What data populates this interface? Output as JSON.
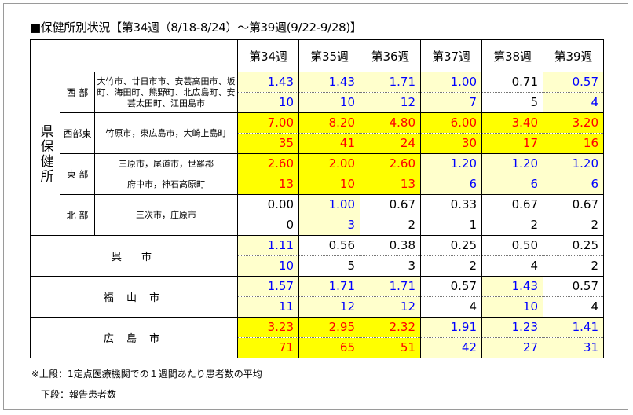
{
  "title": "■保健所別状況【第34週（8/18-8/24）～第39週(9/22-9/28)】",
  "weeks": [
    "第34週",
    "第35週",
    "第36週",
    "第37週",
    "第38週",
    "第39週"
  ],
  "group_label": "県保健所",
  "rows": [
    {
      "sub": "西 部",
      "area": "大竹市、廿日市市、安芸高田市、坂町、海田町、熊野町、北広島町、安芸太田町、江田島市",
      "avg": [
        "1.43",
        "1.43",
        "1.71",
        "1.00",
        "0.71",
        "0.57"
      ],
      "cnt": [
        "10",
        "10",
        "12",
        "7",
        "5",
        "4"
      ]
    },
    {
      "sub": "西部東",
      "area": "竹原市，東広島市，大崎上島町",
      "avg": [
        "7.00",
        "8.20",
        "4.80",
        "6.00",
        "3.40",
        "3.20"
      ],
      "cnt": [
        "35",
        "41",
        "24",
        "30",
        "17",
        "16"
      ]
    },
    {
      "sub": "東 部",
      "area": "三原市，尾道市，世羅郡",
      "avg": [
        "2.60",
        "2.00",
        "2.60",
        "1.20",
        "1.20",
        "1.20"
      ],
      "cnt": [
        "13",
        "10",
        "13",
        "6",
        "6",
        "6"
      ]
    },
    {
      "sub": "",
      "area": "府中市，神石高原町",
      "avg": null,
      "cnt": null
    },
    {
      "sub": "北 部",
      "area": "三次市，庄原市",
      "avg": [
        "0.00",
        "1.00",
        "0.67",
        "0.33",
        "0.67",
        "0.67"
      ],
      "cnt": [
        "0",
        "3",
        "2",
        "1",
        "2",
        "2"
      ]
    },
    {
      "city": "呉　市",
      "avg": [
        "1.11",
        "0.56",
        "0.38",
        "0.25",
        "0.50",
        "0.25"
      ],
      "cnt": [
        "10",
        "5",
        "3",
        "2",
        "4",
        "2"
      ]
    },
    {
      "city": "福 山 市",
      "avg": [
        "1.57",
        "1.71",
        "1.71",
        "0.57",
        "1.43",
        "0.57"
      ],
      "cnt": [
        "11",
        "12",
        "12",
        "4",
        "10",
        "4"
      ]
    },
    {
      "city": "広 島 市",
      "avg": [
        "3.23",
        "2.95",
        "2.32",
        "1.91",
        "1.23",
        "1.41"
      ],
      "cnt": [
        "71",
        "65",
        "51",
        "42",
        "27",
        "31"
      ]
    }
  ],
  "notes": [
    "※上段：1定点医療機関での１週間あたり患者数の平均",
    "下段：報告患者数"
  ],
  "colors": {
    "high_bg": "#ffff00",
    "mid_bg": "#ffffcc",
    "high_text": "#ff0000",
    "mid_text": "#0000ff"
  }
}
